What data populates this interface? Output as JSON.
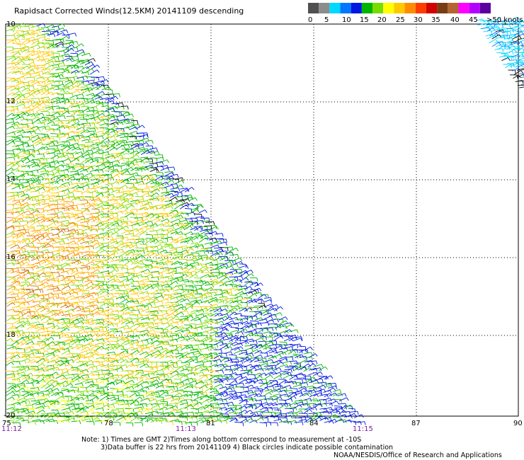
{
  "title": "Rapidsact Corrected Winds(12.5KM) 20141109 descending",
  "legend": {
    "colors": [
      "#505050",
      "#8c8c8c",
      "#00d8ff",
      "#0078ff",
      "#0018e0",
      "#00b400",
      "#78dc00",
      "#ffff00",
      "#ffc800",
      "#ff8c00",
      "#ff3c00",
      "#d20000",
      "#7a3c14",
      "#b46432",
      "#ff00ff",
      "#b400ff",
      "#5a00a0"
    ],
    "labels": [
      "0",
      "5",
      "10",
      "15",
      "20",
      "25",
      "30",
      "35",
      "40",
      "45",
      ">50 knots"
    ]
  },
  "axes": {
    "lat_labels": [
      "10",
      "12",
      "14",
      "16",
      "18",
      "-20"
    ],
    "lon_labels": [
      "75",
      "78",
      "81",
      "84",
      "87",
      "90"
    ],
    "time_labels": [
      "11:12",
      "11:13",
      "11:15"
    ]
  },
  "notes": [
    "Note: 1) Times are GMT 2)Times along bottom correspond to measurement at -10S",
    "3)Data buffer is 22 hrs from 20141109 4) Black circles indicate possible contamination",
    "NOAA/NESDIS/Office of Research and Applications"
  ]
}
